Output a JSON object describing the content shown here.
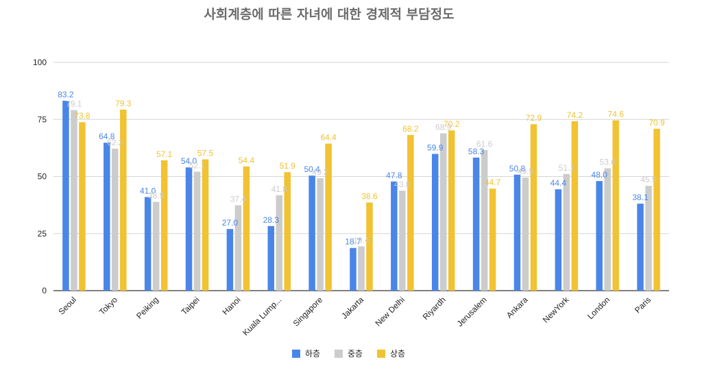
{
  "chart_data": {
    "type": "bar",
    "title": "사회계층에 따른 자녀에 대한 경제적 부담정도",
    "categories": [
      "Seoul",
      "Tokyo",
      "Peiking",
      "Taipei",
      "Hanoi",
      "Kuala Lump...",
      "Singapore",
      "Jakarta",
      "New Delhi",
      "Riyardh",
      "Jerusalem",
      "Ankara",
      "NewYork",
      "London",
      "Paris"
    ],
    "series": [
      {
        "name": "하층",
        "color": "#4a86e8",
        "values": [
          83.2,
          64.8,
          41.0,
          54.0,
          27.0,
          28.3,
          50.4,
          18.7,
          47.8,
          59.9,
          58.3,
          50.8,
          44.4,
          48.0,
          38.1
        ]
      },
      {
        "name": "중층",
        "color": "#cccccc",
        "values": [
          79.1,
          62.2,
          38.9,
          52.1,
          37.4,
          41.8,
          49.2,
          19.4,
          43.8,
          68.9,
          61.6,
          49.5,
          51.1,
          53.6,
          45.9
        ]
      },
      {
        "name": "상층",
        "color": "#f1c232",
        "values": [
          73.8,
          79.3,
          57.1,
          57.5,
          54.4,
          51.9,
          64.4,
          38.6,
          68.2,
          70.2,
          44.7,
          72.9,
          74.2,
          74.6,
          70.9
        ]
      }
    ],
    "xlabel": "",
    "ylabel": "",
    "ylim": [
      0,
      100
    ],
    "yticks": [
      0,
      25,
      50,
      75,
      100
    ],
    "grid": true,
    "legend": "bottom",
    "data_labels": true
  }
}
